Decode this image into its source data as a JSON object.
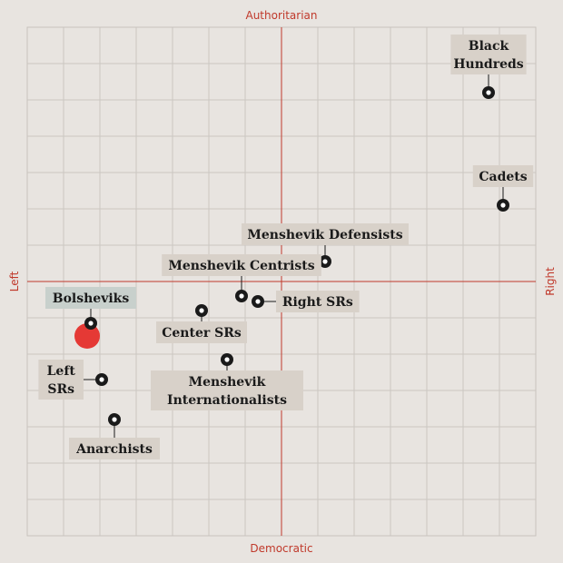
{
  "chart_data": {
    "type": "scatter",
    "axes": {
      "top": "Authoritarian",
      "bottom": "Democratic",
      "left": "Left",
      "right": "Right"
    },
    "xlim": [
      -7,
      7
    ],
    "ylim": [
      -7,
      7
    ],
    "grid": true,
    "colors": {
      "point": "#1a1a1a",
      "label_bg": "#d8d1c9",
      "highlight_bg": "#c8d0cc",
      "axis": "#c0392b",
      "marker": "#e53935"
    },
    "points": [
      {
        "name": "Black Hundreds",
        "x": 5.7,
        "y": 5.2
      },
      {
        "name": "Cadets",
        "x": 6.1,
        "y": 2.1
      },
      {
        "name": "Menshevik Defensists",
        "x": 1.2,
        "y": 0.55
      },
      {
        "name": "Menshevik Centrists",
        "x": -1.1,
        "y": -0.4
      },
      {
        "name": "Right SRs",
        "x": -0.65,
        "y": -0.55
      },
      {
        "name": "Center SRs",
        "x": -2.2,
        "y": -0.8
      },
      {
        "name": "Menshevik Internationalists",
        "x": -1.5,
        "y": -2.15
      },
      {
        "name": "Bolsheviks",
        "x": -5.25,
        "y": -1.15,
        "highlight": true
      },
      {
        "name": "Left SRs",
        "x": -4.95,
        "y": -2.7
      },
      {
        "name": "Anarchists",
        "x": -4.6,
        "y": -3.8
      }
    ],
    "current_position": {
      "x": -5.35,
      "y": -1.5
    }
  }
}
